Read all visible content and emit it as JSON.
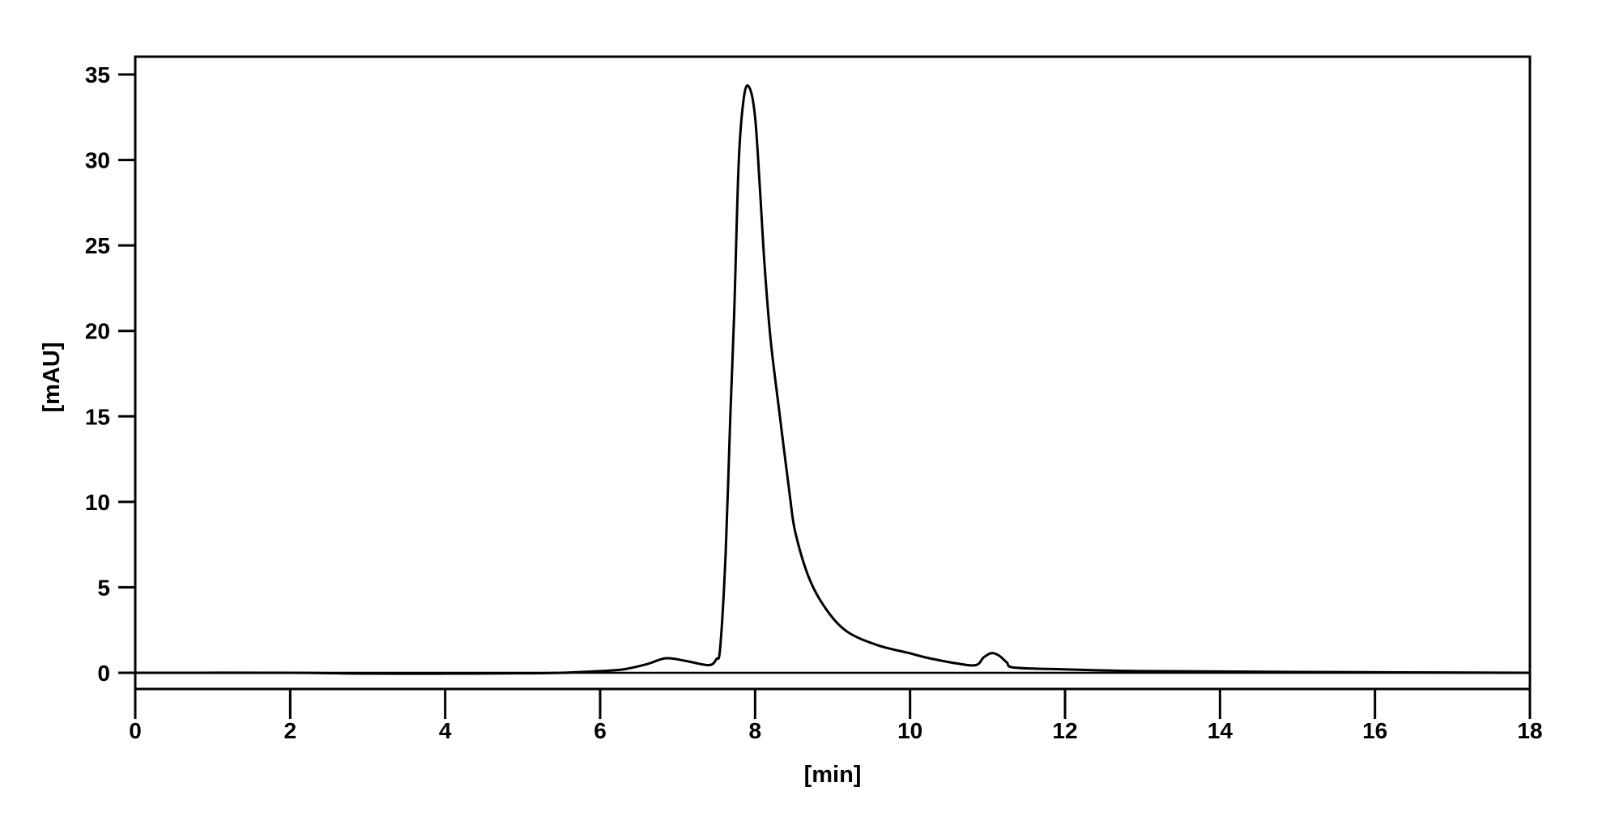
{
  "chart_data": {
    "type": "line",
    "title": "",
    "xlabel": "[min]",
    "ylabel": "[mAU]",
    "xlim": [
      0,
      18
    ],
    "ylim": [
      -1,
      36
    ],
    "xticks": [
      0,
      2,
      4,
      6,
      8,
      10,
      12,
      14,
      16,
      18
    ],
    "yticks": [
      0,
      5,
      10,
      15,
      20,
      25,
      30,
      35
    ],
    "grid": false,
    "legend": "none",
    "line_color": "#000000",
    "series": [
      {
        "x": [
          0,
          2,
          3,
          4,
          5,
          5.5,
          6.0,
          6.3,
          6.6,
          6.85,
          7.1,
          7.4,
          7.5,
          7.55,
          7.62,
          7.68,
          7.73,
          7.79,
          7.86,
          7.93,
          8.0,
          8.06,
          8.12,
          8.2,
          8.32,
          8.45,
          8.52,
          8.7,
          8.92,
          9.19,
          9.59,
          9.99,
          10.2,
          10.6,
          10.85,
          10.95,
          11.05,
          11.15,
          11.25,
          11.35,
          12,
          13,
          15,
          18
        ],
        "y": [
          0,
          0,
          -0.05,
          -0.05,
          -0.03,
          0.0,
          0.1,
          0.2,
          0.5,
          0.85,
          0.7,
          0.45,
          0.8,
          1.5,
          7,
          15,
          21,
          30,
          33.8,
          34.2,
          32.5,
          28.5,
          24,
          19.5,
          15,
          10.3,
          8.2,
          5.5,
          3.7,
          2.4,
          1.6,
          1.15,
          0.9,
          0.55,
          0.45,
          0.9,
          1.15,
          1.0,
          0.6,
          0.3,
          0.2,
          0.1,
          0.05,
          0
        ]
      }
    ]
  }
}
